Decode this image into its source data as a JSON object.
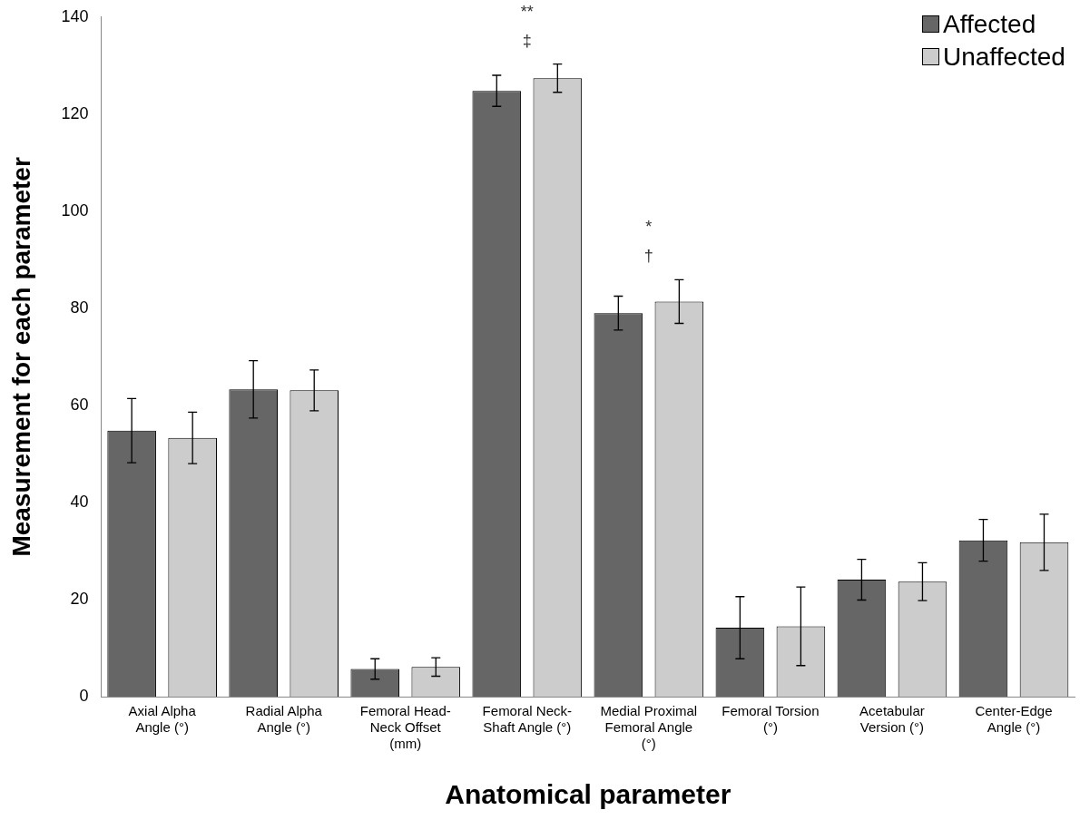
{
  "chart_data": {
    "type": "bar",
    "xlabel": "Anatomical parameter",
    "ylabel": "Measurement for each parameter",
    "categories": [
      "Axial Alpha Angle (°)",
      "Radial Alpha Angle (°)",
      "Femoral Head-Neck Offset (mm)",
      "Femoral Neck-Shaft Angle (°)",
      "Medial Proximal Femoral Angle (°)",
      "Femoral Torsion (°)",
      "Acetabular Version (°)",
      "Center-Edge Angle (°)"
    ],
    "series": [
      {
        "name": "Affected",
        "color": "#666666",
        "values": [
          54.8,
          63.3,
          5.7,
          124.8,
          79.0,
          14.2,
          24.1,
          32.2
        ],
        "errors": [
          6.6,
          5.9,
          2.1,
          3.2,
          3.5,
          6.4,
          4.2,
          4.3
        ]
      },
      {
        "name": "Unaffected",
        "color": "#cccccc",
        "values": [
          53.3,
          63.1,
          6.1,
          127.4,
          81.4,
          14.5,
          23.7,
          31.8
        ],
        "errors": [
          5.3,
          4.2,
          1.9,
          2.9,
          4.5,
          8.1,
          3.9,
          5.8
        ]
      }
    ],
    "ylim": [
      0,
      140
    ],
    "yticks": [
      0,
      20,
      40,
      60,
      80,
      100,
      120,
      140
    ],
    "grid": false,
    "legend": "top right",
    "annotations": [
      "‡",
      "**",
      "†",
      "*"
    ]
  }
}
